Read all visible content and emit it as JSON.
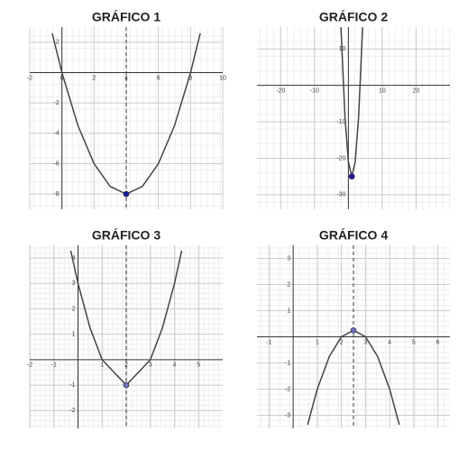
{
  "chart_data": [
    {
      "type": "line",
      "title": "GRÁFICO 1",
      "color": "#444444",
      "point_color": "#1a1aa0",
      "x": [
        -0.6,
        0,
        1,
        2,
        3,
        4,
        5,
        6,
        7,
        8,
        8.6
      ],
      "values": [
        2.58,
        0,
        -3.5,
        -6,
        -7.5,
        -8,
        -7.5,
        -6,
        -3.5,
        0,
        2.58
      ],
      "vertex": {
        "x": 4,
        "y": -8
      },
      "dashed_x": 4,
      "xlim": [
        -2,
        10
      ],
      "ylim": [
        -9,
        3
      ],
      "xticks": [
        -2,
        0,
        2,
        4,
        6,
        8,
        10
      ],
      "yticks": [
        2,
        -2,
        -4,
        -6,
        -8
      ],
      "grid": true
    },
    {
      "type": "line",
      "title": "GRÁFICO 2",
      "color": "#444444",
      "point_color": "#1a1aa0",
      "x": [
        -2.2,
        -1,
        0,
        1,
        2,
        3,
        4.2
      ],
      "values": [
        15.96,
        -9,
        -21,
        -25,
        -21,
        -9,
        15.96
      ],
      "vertex": {
        "x": 1,
        "y": -25
      },
      "xlim": [
        -27,
        30
      ],
      "ylim": [
        -34,
        16
      ],
      "xticks": [
        -20,
        -10,
        10,
        20
      ],
      "yticks": [
        10,
        -10,
        -20,
        -30
      ],
      "grid": true
    },
    {
      "type": "line",
      "title": "GRÁFICO 3",
      "color": "#444444",
      "point_color": "#7070c0",
      "x": [
        -0.3,
        0,
        0.5,
        1,
        2,
        3,
        3.5,
        4,
        4.3
      ],
      "values": [
        4.29,
        3,
        1.25,
        0,
        -1,
        0,
        1.25,
        3,
        4.29
      ],
      "vertex": {
        "x": 2,
        "y": -1
      },
      "dashed_x": 2,
      "xlim": [
        -2,
        6
      ],
      "ylim": [
        -2.7,
        4.5
      ],
      "xticks": [
        -2,
        -1,
        1,
        2,
        3,
        4,
        5
      ],
      "yticks": [
        4,
        3,
        2,
        1,
        -1,
        -2
      ],
      "grid": true
    },
    {
      "type": "line",
      "title": "GRÁFICO 4",
      "color": "#444444",
      "point_color": "#7070c0",
      "x": [
        0.6,
        1,
        1.5,
        2,
        2.5,
        3,
        3.5,
        4,
        4.4
      ],
      "values": [
        -3.36,
        -2,
        -0.75,
        0,
        0.25,
        0,
        -0.75,
        -2,
        -3.36
      ],
      "vertex": {
        "x": 2.5,
        "y": 0.25
      },
      "dashed_x": 2.5,
      "xlim": [
        -1.5,
        6.5
      ],
      "ylim": [
        -3.5,
        3.5
      ],
      "xticks": [
        -1,
        1,
        2,
        3,
        4,
        5,
        6
      ],
      "yticks": [
        3,
        2,
        1,
        -1,
        -2,
        -3
      ],
      "grid": true
    }
  ]
}
